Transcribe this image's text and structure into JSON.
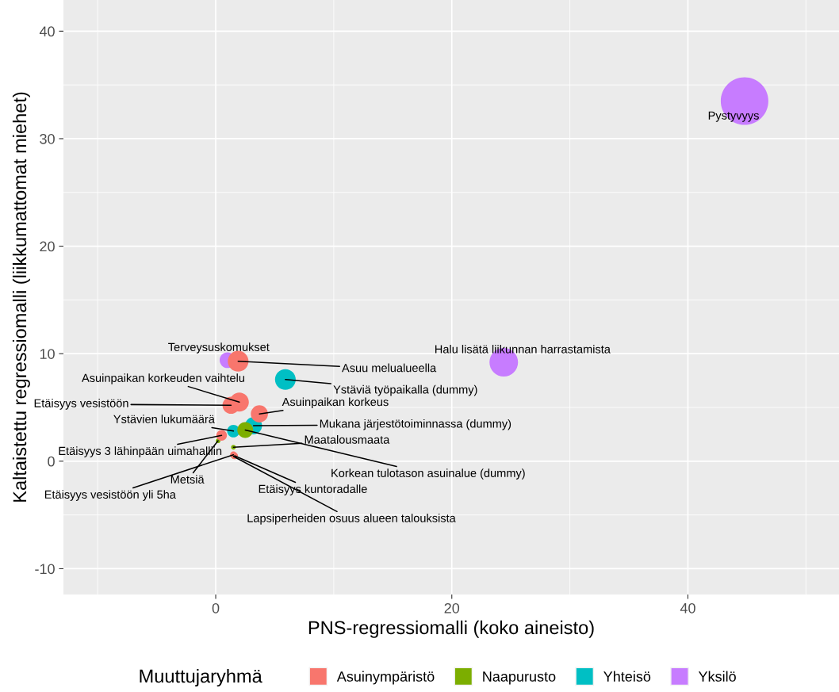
{
  "chart_data": {
    "type": "bubble",
    "xlabel": "PNS-regressiomalli (koko aineisto)",
    "ylabel": "Kaltaistettu regressiomalli (liikkumattomat miehet)",
    "legend_title": "Muuttujaryhmä",
    "legend": "bottom",
    "grid": true,
    "xlim": [
      -12.9,
      52.8
    ],
    "xticks": [
      0,
      20,
      40
    ],
    "ylim": [
      -12.4,
      42.9
    ],
    "yticks": [
      -10,
      0,
      10,
      20,
      30,
      40
    ],
    "series": [
      {
        "name": "Asuinympäristö",
        "color": "#f8766d",
        "x": [
          1.9,
          2.0,
          1.3,
          3.7,
          0.5,
          1.5,
          1.6
        ],
        "values": [
          9.3,
          5.5,
          5.2,
          4.4,
          2.4,
          0.6,
          0.5
        ],
        "sizes": [
          0.19,
          0.16,
          0.13,
          0.13,
          0.05,
          0.02,
          0.02
        ]
      },
      {
        "name": "Naapurusto",
        "color": "#7cae00",
        "x": [
          2.5,
          0.2,
          1.5,
          1.5
        ],
        "values": [
          2.9,
          1.9,
          1.3,
          0.45
        ],
        "sizes": [
          0.11,
          0.01,
          0.01,
          0.01
        ]
      },
      {
        "name": "Yhteisö",
        "color": "#00bfc4",
        "x": [
          5.9,
          3.2,
          1.5
        ],
        "values": [
          7.6,
          3.3,
          2.8
        ],
        "sizes": [
          0.19,
          0.13,
          0.07
        ]
      },
      {
        "name": "Yksilö",
        "color": "#c77cff",
        "x": [
          44.8,
          24.4,
          1.0
        ],
        "values": [
          33.5,
          9.2,
          9.4
        ],
        "sizes": [
          1,
          0.36,
          0.11
        ]
      }
    ],
    "annotations": [
      {
        "text": "Pystyvyys",
        "x": 44.8,
        "y": 33.5
      },
      {
        "text": "Halu lisätä liikunnan harrastamista",
        "x": 24.4,
        "y": 9.2
      },
      {
        "text": "Terveysuskomukset",
        "x": 1.0,
        "y": 9.4
      },
      {
        "text": "Asuu melualueella",
        "x": 1.9,
        "y": 9.3
      },
      {
        "text": "Ystäviä työpaikalla (dummy)",
        "x": 5.9,
        "y": 7.6
      },
      {
        "text": "Asuinpaikan korkeuden vaihtelu",
        "x": 2.0,
        "y": 5.5
      },
      {
        "text": "Etäisyys vesistöön",
        "x": 1.3,
        "y": 5.2
      },
      {
        "text": "Asuinpaikan korkeus",
        "x": 3.7,
        "y": 4.4
      },
      {
        "text": "Ystävien lukumäärä",
        "x": 1.5,
        "y": 2.8
      },
      {
        "text": "Mukana järjestötoiminnassa (dummy)",
        "x": 3.2,
        "y": 3.3
      },
      {
        "text": "Korkean tulotason asuinalue (dummy)",
        "x": 2.5,
        "y": 2.9
      },
      {
        "text": "Etäisyys 3 lähinpään uimahalliin",
        "x": 0.5,
        "y": 2.4
      },
      {
        "text": "Metsiä",
        "x": 0.2,
        "y": 1.9
      },
      {
        "text": "Maatalousmaata",
        "x": 1.5,
        "y": 1.3
      },
      {
        "text": "Etäisyys vesistöön yli 5ha",
        "x": 1.5,
        "y": 0.6
      },
      {
        "text": "Etäisyys kuntoradalle",
        "x": 1.6,
        "y": 0.5
      },
      {
        "text": "Lapsiperheiden osuus alueen talouksista",
        "x": 1.5,
        "y": 0.45
      }
    ]
  }
}
